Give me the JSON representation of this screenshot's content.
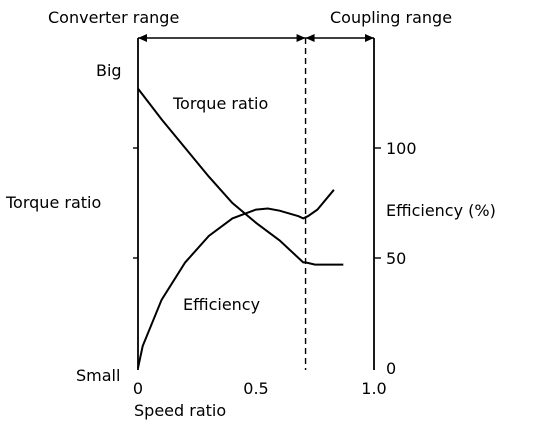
{
  "chart_data": {
    "type": "line",
    "title": "",
    "regions": {
      "converter_label": "Converter range",
      "coupling_label": "Coupling range",
      "coupling_point": 0.71
    },
    "xaxis": {
      "label": "Speed ratio",
      "range": [
        0,
        1.0
      ],
      "ticks": [
        {
          "value": 0,
          "label": "0"
        },
        {
          "value": 0.5,
          "label": "0.5"
        },
        {
          "value": 1.0,
          "label": "1.0"
        }
      ]
    },
    "left_axis": {
      "label": "Torque ratio",
      "top_label": "Big",
      "bottom_label": "Small"
    },
    "right_axis": {
      "label": "Efficiency (%)",
      "range": [
        0,
        100
      ],
      "ticks": [
        {
          "value": 0,
          "label": "0"
        },
        {
          "value": 50,
          "label": "50"
        },
        {
          "value": 100,
          "label": "100"
        }
      ]
    },
    "series": [
      {
        "name": "Torque ratio",
        "axis": "left",
        "points": [
          [
            0,
            127
          ],
          [
            0.1,
            113
          ],
          [
            0.2,
            100
          ],
          [
            0.3,
            87
          ],
          [
            0.4,
            75
          ],
          [
            0.5,
            66
          ],
          [
            0.6,
            58
          ],
          [
            0.7,
            48
          ],
          [
            0.71,
            48
          ],
          [
            0.75,
            47
          ],
          [
            0.87,
            47
          ]
        ]
      },
      {
        "name": "Efficiency",
        "axis": "right",
        "points": [
          [
            0,
            0
          ],
          [
            0.02,
            10
          ],
          [
            0.1,
            31
          ],
          [
            0.2,
            48
          ],
          [
            0.3,
            60
          ],
          [
            0.4,
            68
          ],
          [
            0.5,
            72
          ],
          [
            0.55,
            72.5
          ],
          [
            0.6,
            71.5
          ],
          [
            0.68,
            69
          ],
          [
            0.7,
            68
          ],
          [
            0.72,
            69
          ],
          [
            0.76,
            72
          ],
          [
            0.83,
            81
          ]
        ]
      }
    ],
    "grid": false
  }
}
